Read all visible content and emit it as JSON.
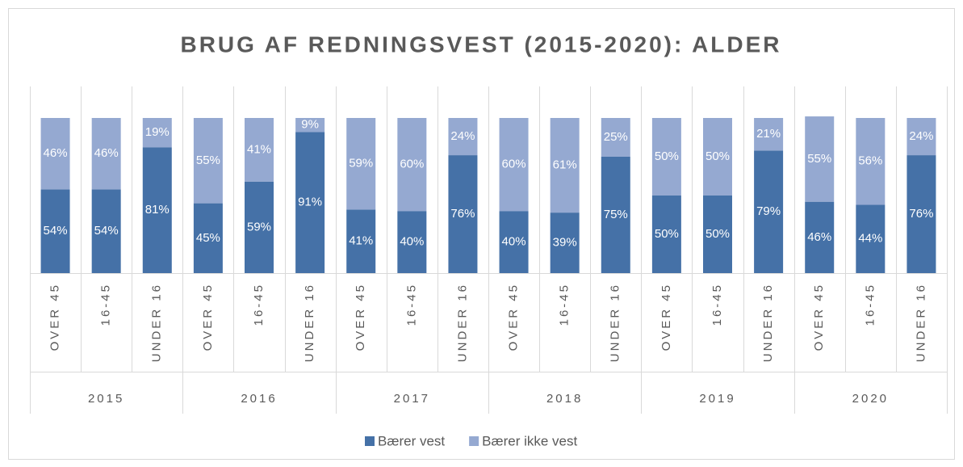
{
  "chart_data": {
    "type": "stacked-bar",
    "title": "BRUG AF REDNINGSVEST (2015-2020): ALDER",
    "groups": [
      {
        "label": "2015",
        "categories": [
          "OVER 45",
          "16-45",
          "UNDER 16"
        ]
      },
      {
        "label": "2016",
        "categories": [
          "OVER 45",
          "16-45",
          "UNDER 16"
        ]
      },
      {
        "label": "2017",
        "categories": [
          "OVER 45",
          "16-45",
          "UNDER 16"
        ]
      },
      {
        "label": "2018",
        "categories": [
          "OVER 45",
          "16-45",
          "UNDER 16"
        ]
      },
      {
        "label": "2019",
        "categories": [
          "OVER 45",
          "16-45",
          "UNDER 16"
        ]
      },
      {
        "label": "2020",
        "categories": [
          "OVER 45",
          "16-45",
          "UNDER 16"
        ]
      }
    ],
    "series": [
      {
        "name": "Bærer vest",
        "color": "#4571a7",
        "values": [
          54,
          54,
          81,
          45,
          59,
          91,
          41,
          40,
          76,
          40,
          39,
          75,
          50,
          50,
          79,
          46,
          44,
          76
        ],
        "value_labels": [
          "54%",
          "54%",
          "81%",
          "45%",
          "59%",
          "91%",
          "41%",
          "40%",
          "76%",
          "40%",
          "39%",
          "75%",
          "50%",
          "50%",
          "79%",
          "46%",
          "44%",
          "76%"
        ]
      },
      {
        "name": "Bærer ikke vest",
        "color": "#95a9d1",
        "values": [
          46,
          46,
          19,
          55,
          41,
          9,
          59,
          60,
          24,
          60,
          61,
          25,
          50,
          50,
          21,
          55,
          56,
          24
        ],
        "value_labels": [
          "46%",
          "46%",
          "19%",
          "55%",
          "41%",
          "9%",
          "59%",
          "60%",
          "24%",
          "60%",
          "61%",
          "25%",
          "50%",
          "50%",
          "21%",
          "55%",
          "56%",
          "24%"
        ]
      }
    ],
    "ylim": [
      0,
      100
    ],
    "legend": "bottom"
  }
}
